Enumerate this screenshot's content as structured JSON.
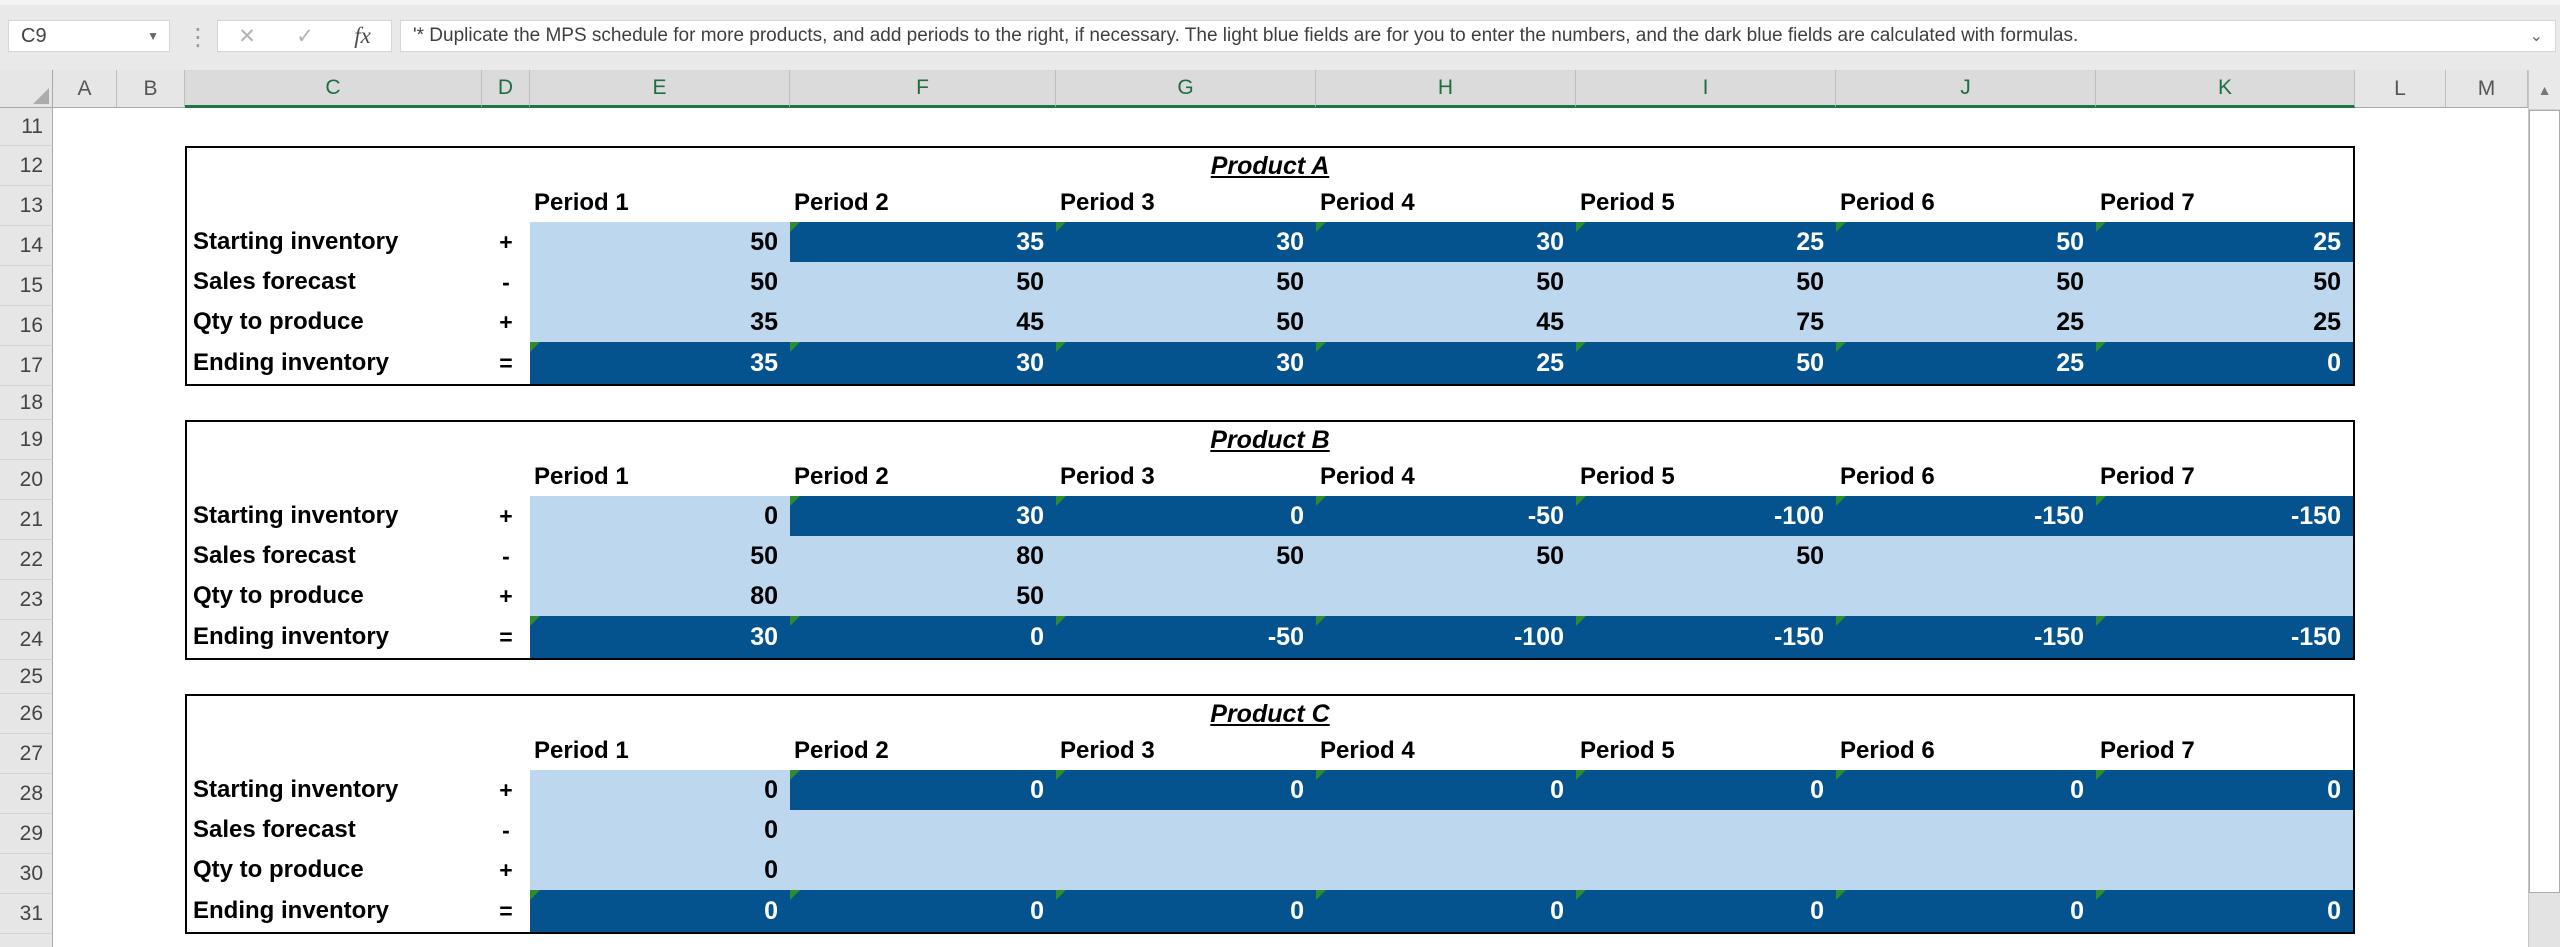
{
  "chrome": {
    "name_box": {
      "value": "C9"
    },
    "formula_bar": {
      "value": "'* Duplicate the MPS schedule for more products, and add periods to the right, if necessary. The light blue fields are for you to enter the numbers, and the dark blue fields are calculated with formulas."
    },
    "icons": {
      "name_box_dropdown": "▼",
      "separator_dots": "⋮",
      "cancel": "✕",
      "enter": "✓",
      "function": "fx",
      "formula_expand": "⌄",
      "scroll_up": "▲"
    }
  },
  "grid": {
    "columns": [
      {
        "label": "A",
        "selected": false
      },
      {
        "label": "B",
        "selected": false
      },
      {
        "label": "C",
        "selected": true
      },
      {
        "label": "D",
        "selected": true
      },
      {
        "label": "E",
        "selected": true
      },
      {
        "label": "F",
        "selected": true
      },
      {
        "label": "G",
        "selected": true
      },
      {
        "label": "H",
        "selected": true
      },
      {
        "label": "I",
        "selected": true
      },
      {
        "label": "J",
        "selected": true
      },
      {
        "label": "K",
        "selected": true
      },
      {
        "label": "L",
        "selected": false
      },
      {
        "label": "M",
        "selected": false
      }
    ],
    "rows": [
      "11",
      "12",
      "13",
      "14",
      "15",
      "16",
      "17",
      "18",
      "19",
      "20",
      "21",
      "22",
      "23",
      "24",
      "25",
      "26",
      "27",
      "28",
      "29",
      "30",
      "31"
    ]
  },
  "tables": [
    {
      "title": "Product A",
      "periods": [
        "Period 1",
        "Period 2",
        "Period 3",
        "Period 4",
        "Period 5",
        "Period 6",
        "Period 7"
      ],
      "rows": [
        {
          "label": "Starting inventory",
          "sign": "+",
          "cells": [
            {
              "v": "50",
              "t": "input"
            },
            {
              "v": "35",
              "t": "calc"
            },
            {
              "v": "30",
              "t": "calc"
            },
            {
              "v": "30",
              "t": "calc"
            },
            {
              "v": "25",
              "t": "calc"
            },
            {
              "v": "50",
              "t": "calc"
            },
            {
              "v": "25",
              "t": "calc"
            }
          ]
        },
        {
          "label": "Sales forecast",
          "sign": "-",
          "cells": [
            {
              "v": "50",
              "t": "input"
            },
            {
              "v": "50",
              "t": "input"
            },
            {
              "v": "50",
              "t": "input"
            },
            {
              "v": "50",
              "t": "input"
            },
            {
              "v": "50",
              "t": "input"
            },
            {
              "v": "50",
              "t": "input"
            },
            {
              "v": "50",
              "t": "input"
            }
          ]
        },
        {
          "label": "Qty to produce",
          "sign": "+",
          "cells": [
            {
              "v": "35",
              "t": "input"
            },
            {
              "v": "45",
              "t": "input"
            },
            {
              "v": "50",
              "t": "input"
            },
            {
              "v": "45",
              "t": "input"
            },
            {
              "v": "75",
              "t": "input"
            },
            {
              "v": "25",
              "t": "input"
            },
            {
              "v": "25",
              "t": "input"
            }
          ]
        },
        {
          "label": "Ending inventory",
          "sign": "=",
          "cells": [
            {
              "v": "35",
              "t": "calc"
            },
            {
              "v": "30",
              "t": "calc"
            },
            {
              "v": "30",
              "t": "calc"
            },
            {
              "v": "25",
              "t": "calc"
            },
            {
              "v": "50",
              "t": "calc"
            },
            {
              "v": "25",
              "t": "calc"
            },
            {
              "v": "0",
              "t": "calc"
            }
          ]
        }
      ]
    },
    {
      "title": "Product B",
      "periods": [
        "Period 1",
        "Period 2",
        "Period 3",
        "Period 4",
        "Period 5",
        "Period 6",
        "Period 7"
      ],
      "rows": [
        {
          "label": "Starting inventory",
          "sign": "+",
          "cells": [
            {
              "v": "0",
              "t": "input"
            },
            {
              "v": "30",
              "t": "calc"
            },
            {
              "v": "0",
              "t": "calc"
            },
            {
              "v": "-50",
              "t": "calc"
            },
            {
              "v": "-100",
              "t": "calc"
            },
            {
              "v": "-150",
              "t": "calc"
            },
            {
              "v": "-150",
              "t": "calc"
            }
          ]
        },
        {
          "label": "Sales forecast",
          "sign": "-",
          "cells": [
            {
              "v": "50",
              "t": "input"
            },
            {
              "v": "80",
              "t": "input"
            },
            {
              "v": "50",
              "t": "input"
            },
            {
              "v": "50",
              "t": "input"
            },
            {
              "v": "50",
              "t": "input"
            },
            {
              "v": "",
              "t": "input"
            },
            {
              "v": "",
              "t": "input"
            }
          ]
        },
        {
          "label": "Qty to produce",
          "sign": "+",
          "cells": [
            {
              "v": "80",
              "t": "input"
            },
            {
              "v": "50",
              "t": "input"
            },
            {
              "v": "",
              "t": "input"
            },
            {
              "v": "",
              "t": "input"
            },
            {
              "v": "",
              "t": "input"
            },
            {
              "v": "",
              "t": "input"
            },
            {
              "v": "",
              "t": "input"
            }
          ]
        },
        {
          "label": "Ending inventory",
          "sign": "=",
          "cells": [
            {
              "v": "30",
              "t": "calc"
            },
            {
              "v": "0",
              "t": "calc"
            },
            {
              "v": "-50",
              "t": "calc"
            },
            {
              "v": "-100",
              "t": "calc"
            },
            {
              "v": "-150",
              "t": "calc"
            },
            {
              "v": "-150",
              "t": "calc"
            },
            {
              "v": "-150",
              "t": "calc"
            }
          ]
        }
      ]
    },
    {
      "title": "Product C",
      "periods": [
        "Period 1",
        "Period 2",
        "Period 3",
        "Period 4",
        "Period 5",
        "Period 6",
        "Period 7"
      ],
      "rows": [
        {
          "label": "Starting inventory",
          "sign": "+",
          "cells": [
            {
              "v": "0",
              "t": "input"
            },
            {
              "v": "0",
              "t": "calc"
            },
            {
              "v": "0",
              "t": "calc"
            },
            {
              "v": "0",
              "t": "calc"
            },
            {
              "v": "0",
              "t": "calc"
            },
            {
              "v": "0",
              "t": "calc"
            },
            {
              "v": "0",
              "t": "calc"
            }
          ]
        },
        {
          "label": "Sales forecast",
          "sign": "-",
          "cells": [
            {
              "v": "0",
              "t": "input"
            },
            {
              "v": "",
              "t": "input"
            },
            {
              "v": "",
              "t": "input"
            },
            {
              "v": "",
              "t": "input"
            },
            {
              "v": "",
              "t": "input"
            },
            {
              "v": "",
              "t": "input"
            },
            {
              "v": "",
              "t": "input"
            }
          ]
        },
        {
          "label": "Qty to produce",
          "sign": "+",
          "cells": [
            {
              "v": "0",
              "t": "input"
            },
            {
              "v": "",
              "t": "input"
            },
            {
              "v": "",
              "t": "input"
            },
            {
              "v": "",
              "t": "input"
            },
            {
              "v": "",
              "t": "input"
            },
            {
              "v": "",
              "t": "input"
            },
            {
              "v": "",
              "t": "input"
            }
          ]
        },
        {
          "label": "Ending inventory",
          "sign": "=",
          "cells": [
            {
              "v": "0",
              "t": "calc"
            },
            {
              "v": "0",
              "t": "calc"
            },
            {
              "v": "0",
              "t": "calc"
            },
            {
              "v": "0",
              "t": "calc"
            },
            {
              "v": "0",
              "t": "calc"
            },
            {
              "v": "0",
              "t": "calc"
            },
            {
              "v": "0",
              "t": "calc"
            }
          ]
        }
      ]
    }
  ],
  "colors": {
    "dark_blue_fill": "#05538E",
    "light_blue_fill": "#BDD7EE",
    "error_indicator_green": "#2E8B2E",
    "selection_green": "#217346",
    "table_border": "#000000",
    "chrome_bg": "#E9E9E9",
    "header_bg": "#E6E6E6",
    "header_selected_bg": "#DBDBDB",
    "header_selected_text": "#1E6E41"
  }
}
